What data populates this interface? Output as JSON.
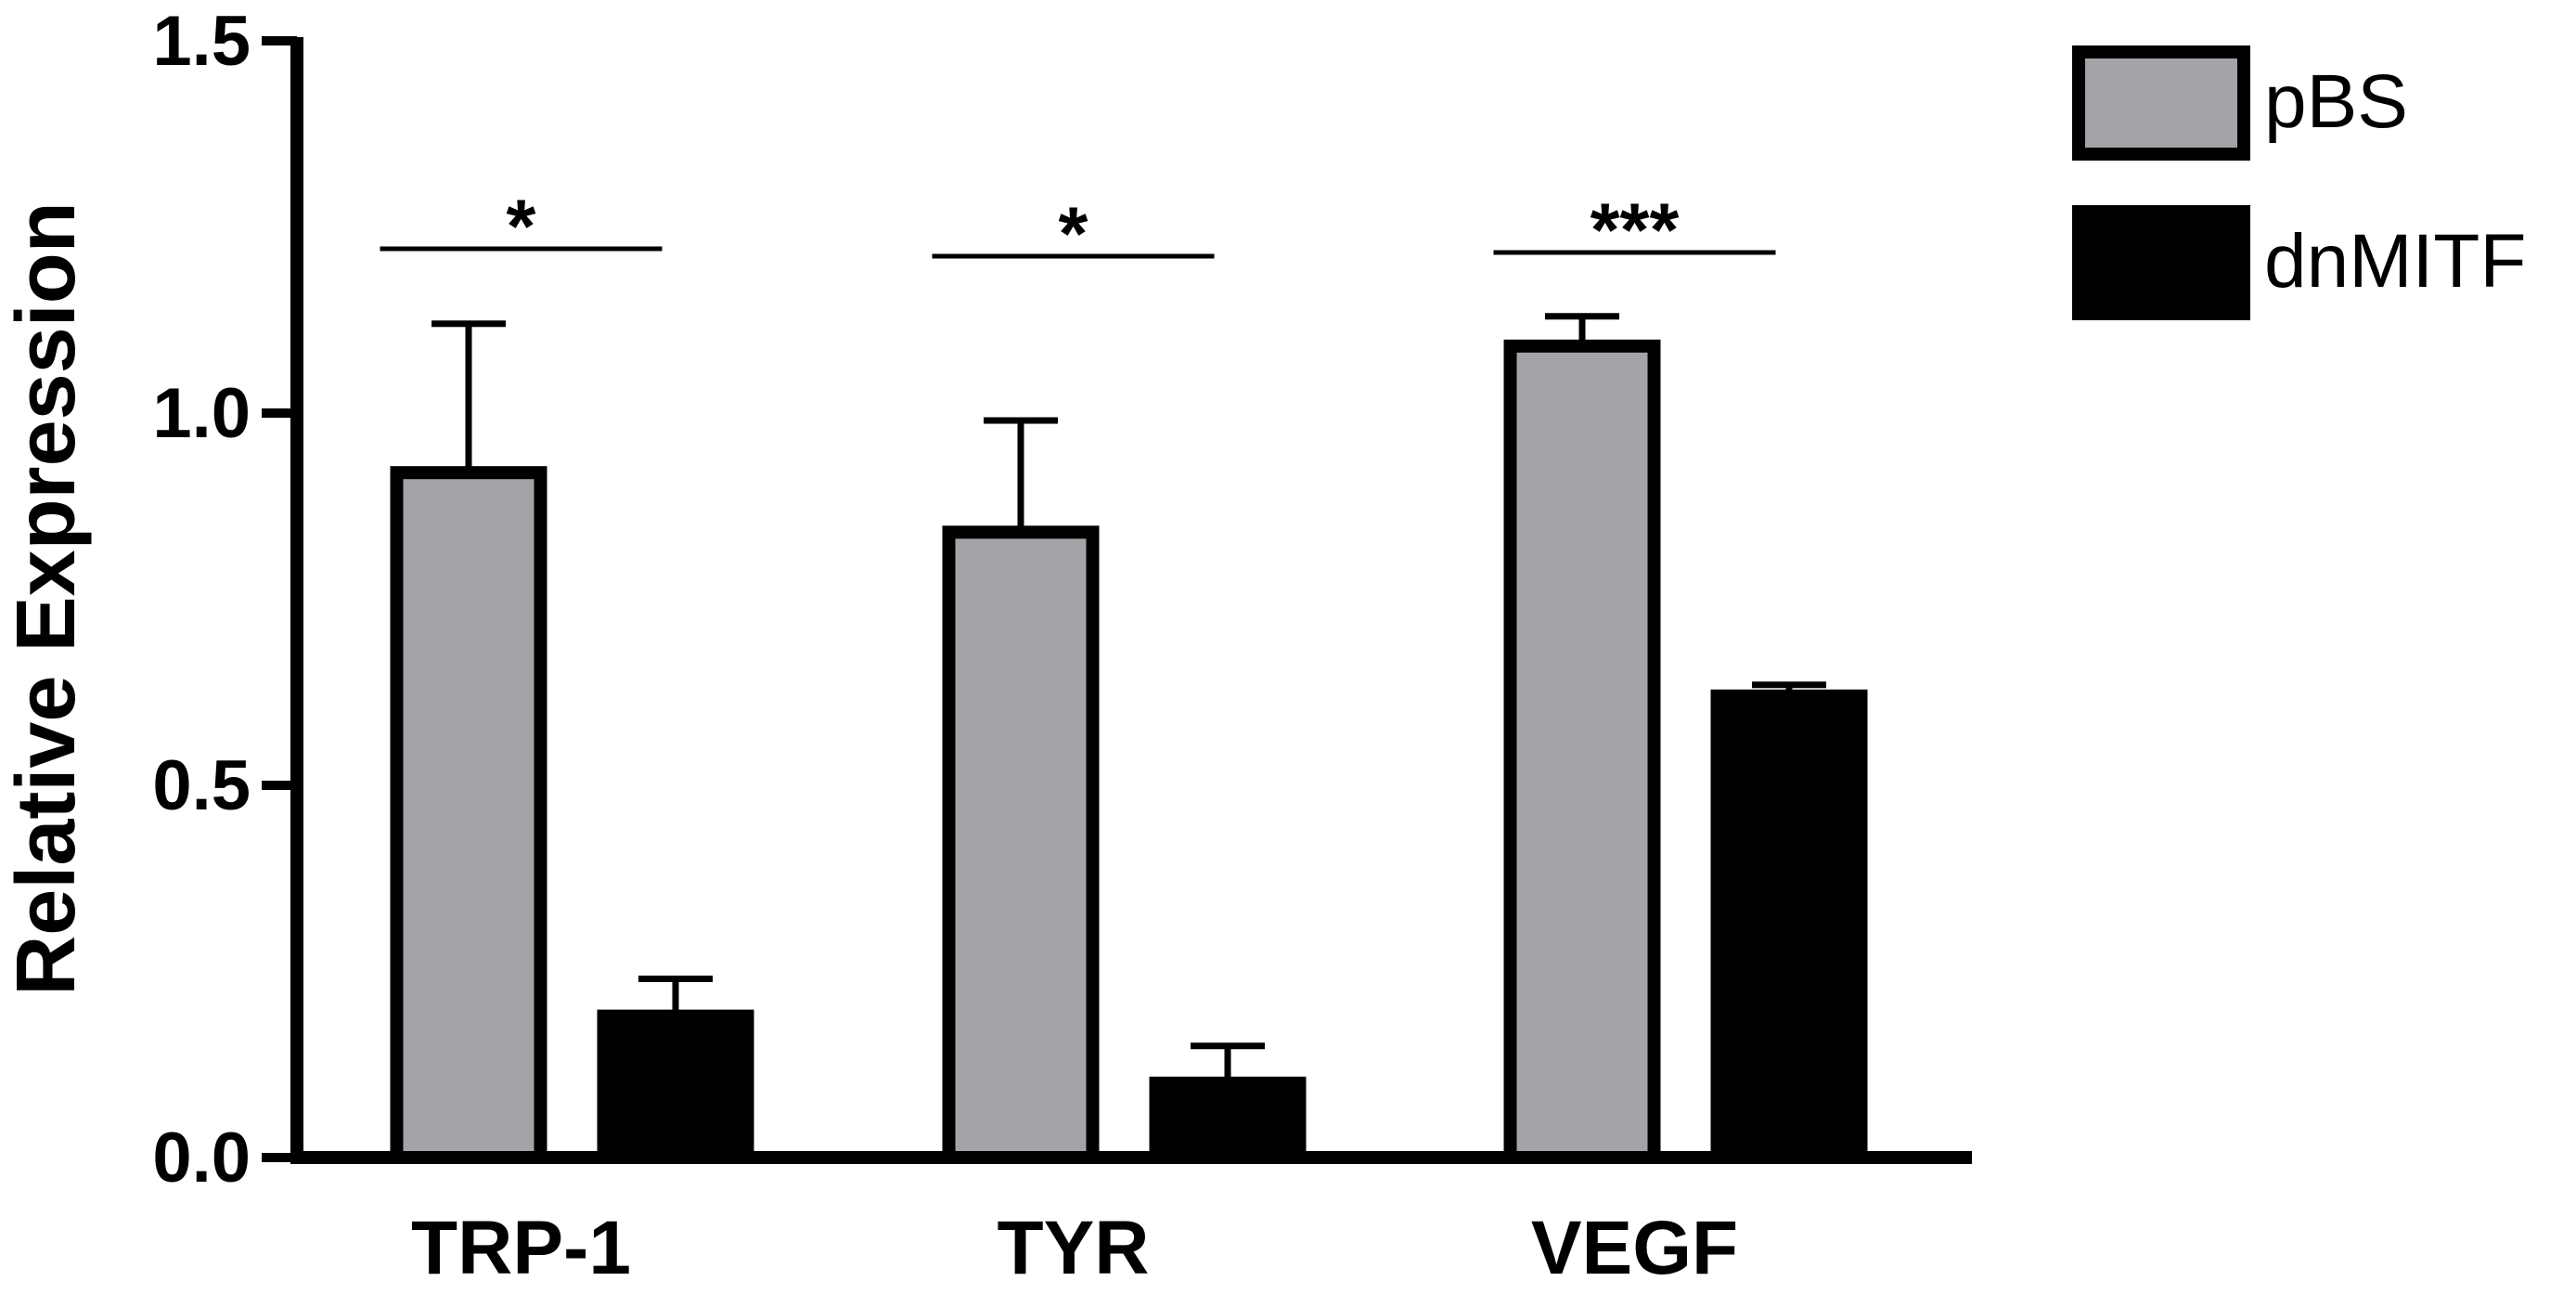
{
  "chart_data": {
    "type": "bar",
    "title": "",
    "xlabel": "",
    "ylabel": "Relative Expression",
    "ylim": [
      0,
      1.5
    ],
    "yticks": [
      "0.0",
      "0.5",
      "1.0",
      "1.5"
    ],
    "categories": [
      "TRP-1",
      "TYR",
      "VEGF"
    ],
    "series": [
      {
        "name": "pBS",
        "color": "#a3a3a8",
        "values": [
          0.92,
          0.84,
          1.09
        ],
        "errors": [
          0.2,
          0.15,
          0.04
        ]
      },
      {
        "name": "dnMITF",
        "color": "#000000",
        "values": [
          0.19,
          0.1,
          0.62
        ],
        "errors": [
          0.05,
          0.05,
          0.015
        ]
      }
    ],
    "significance": [
      "*",
      "*",
      "***"
    ],
    "grid": false,
    "legend_position": "top-right"
  }
}
